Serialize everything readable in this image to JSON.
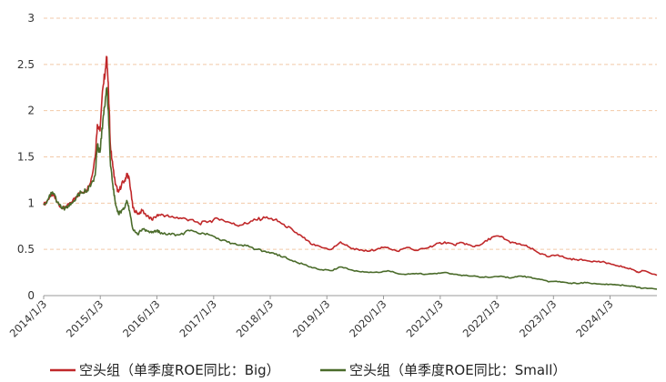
{
  "chart_data": {
    "type": "line",
    "title": "",
    "xlabel": "",
    "ylabel": "",
    "ylim": [
      0,
      3
    ],
    "yticks": [
      0,
      0.5,
      1,
      1.5,
      2,
      2.5,
      3
    ],
    "ytick_labels": [
      "0",
      "0.5",
      "1",
      "1.5",
      "2",
      "2.5",
      "3"
    ],
    "xlim": [
      "2014/1/3",
      "2024/10/31"
    ],
    "x_tick_labels": [
      "2014/1/3",
      "2015/1/3",
      "2016/1/3",
      "2017/1/3",
      "2018/1/3",
      "2019/1/3",
      "2020/1/3",
      "2021/1/3",
      "2022/1/3",
      "2023/1/3",
      "2024/1/3"
    ],
    "grid": {
      "y": true,
      "x": false,
      "style": "dashed",
      "color": "#f2c9a8"
    },
    "legend_position": "bottom",
    "series": [
      {
        "name": "空头组（单季度ROE同比：Big）",
        "color": "#c0282a",
        "points": [
          [
            "2014/1/3",
            0.98
          ],
          [
            "2014/2/1",
            1.04
          ],
          [
            "2014/3/1",
            1.1
          ],
          [
            "2014/4/1",
            1.01
          ],
          [
            "2014/5/1",
            0.94
          ],
          [
            "2014/6/1",
            0.96
          ],
          [
            "2014/7/1",
            1.01
          ],
          [
            "2014/8/1",
            1.07
          ],
          [
            "2014/9/1",
            1.12
          ],
          [
            "2014/10/1",
            1.14
          ],
          [
            "2014/11/1",
            1.22
          ],
          [
            "2014/12/1",
            1.5
          ],
          [
            "2014/12/15",
            1.85
          ],
          [
            "2015/1/1",
            1.78
          ],
          [
            "2015/1/20",
            2.25
          ],
          [
            "2015/2/5",
            2.45
          ],
          [
            "2015/2/15",
            2.58
          ],
          [
            "2015/2/25",
            2.2
          ],
          [
            "2015/3/10",
            1.6
          ],
          [
            "2015/3/25",
            1.4
          ],
          [
            "2015/4/10",
            1.2
          ],
          [
            "2015/5/1",
            1.12
          ],
          [
            "2015/5/20",
            1.2
          ],
          [
            "2015/6/10",
            1.25
          ],
          [
            "2015/6/25",
            1.32
          ],
          [
            "2015/7/10",
            1.25
          ],
          [
            "2015/8/1",
            0.95
          ],
          [
            "2015/9/1",
            0.88
          ],
          [
            "2015/10/1",
            0.92
          ],
          [
            "2015/11/1",
            0.86
          ],
          [
            "2015/12/1",
            0.82
          ],
          [
            "2016/1/1",
            0.86
          ],
          [
            "2016/2/1",
            0.88
          ],
          [
            "2016/4/1",
            0.85
          ],
          [
            "2016/6/1",
            0.84
          ],
          [
            "2016/8/1",
            0.82
          ],
          [
            "2016/10/1",
            0.78
          ],
          [
            "2016/12/1",
            0.8
          ],
          [
            "2017/2/1",
            0.83
          ],
          [
            "2017/4/1",
            0.8
          ],
          [
            "2017/6/1",
            0.76
          ],
          [
            "2017/8/1",
            0.78
          ],
          [
            "2017/10/1",
            0.82
          ],
          [
            "2017/12/1",
            0.84
          ],
          [
            "2018/2/1",
            0.82
          ],
          [
            "2018/4/1",
            0.77
          ],
          [
            "2018/6/1",
            0.7
          ],
          [
            "2018/8/1",
            0.63
          ],
          [
            "2018/10/1",
            0.55
          ],
          [
            "2018/12/1",
            0.52
          ],
          [
            "2019/2/1",
            0.5
          ],
          [
            "2019/4/1",
            0.58
          ],
          [
            "2019/6/1",
            0.52
          ],
          [
            "2019/8/1",
            0.49
          ],
          [
            "2019/10/1",
            0.48
          ],
          [
            "2019/12/1",
            0.51
          ],
          [
            "2020/2/1",
            0.52
          ],
          [
            "2020/4/1",
            0.48
          ],
          [
            "2020/6/1",
            0.52
          ],
          [
            "2020/8/1",
            0.49
          ],
          [
            "2020/10/1",
            0.51
          ],
          [
            "2020/12/1",
            0.55
          ],
          [
            "2021/2/1",
            0.58
          ],
          [
            "2021/4/1",
            0.55
          ],
          [
            "2021/6/1",
            0.57
          ],
          [
            "2021/8/1",
            0.53
          ],
          [
            "2021/10/1",
            0.56
          ],
          [
            "2021/12/1",
            0.63
          ],
          [
            "2022/2/1",
            0.64
          ],
          [
            "2022/4/1",
            0.57
          ],
          [
            "2022/6/1",
            0.56
          ],
          [
            "2022/8/1",
            0.52
          ],
          [
            "2022/10/1",
            0.46
          ],
          [
            "2022/12/1",
            0.42
          ],
          [
            "2023/2/1",
            0.44
          ],
          [
            "2023/4/1",
            0.4
          ],
          [
            "2023/6/1",
            0.39
          ],
          [
            "2023/8/1",
            0.38
          ],
          [
            "2023/10/1",
            0.37
          ],
          [
            "2023/12/1",
            0.36
          ],
          [
            "2024/2/1",
            0.33
          ],
          [
            "2024/4/1",
            0.31
          ],
          [
            "2024/6/1",
            0.28
          ],
          [
            "2024/7/1",
            0.25
          ],
          [
            "2024/8/1",
            0.27
          ],
          [
            "2024/10/31",
            0.22
          ]
        ]
      },
      {
        "name": "空头组（单季度ROE同比：Small）",
        "color": "#4a6b2a",
        "points": [
          [
            "2014/1/3",
            0.98
          ],
          [
            "2014/2/1",
            1.04
          ],
          [
            "2014/3/1",
            1.12
          ],
          [
            "2014/4/1",
            1.01
          ],
          [
            "2014/5/1",
            0.94
          ],
          [
            "2014/6/1",
            0.95
          ],
          [
            "2014/7/1",
            1.0
          ],
          [
            "2014/8/1",
            1.06
          ],
          [
            "2014/9/1",
            1.12
          ],
          [
            "2014/10/1",
            1.13
          ],
          [
            "2014/11/1",
            1.18
          ],
          [
            "2014/12/1",
            1.3
          ],
          [
            "2014/12/15",
            1.62
          ],
          [
            "2015/1/1",
            1.55
          ],
          [
            "2015/1/20",
            1.9
          ],
          [
            "2015/2/5",
            2.12
          ],
          [
            "2015/2/15",
            2.25
          ],
          [
            "2015/2/25",
            1.95
          ],
          [
            "2015/3/10",
            1.4
          ],
          [
            "2015/3/25",
            1.2
          ],
          [
            "2015/4/10",
            1.0
          ],
          [
            "2015/5/1",
            0.88
          ],
          [
            "2015/5/20",
            0.92
          ],
          [
            "2015/6/10",
            0.95
          ],
          [
            "2015/6/25",
            1.02
          ],
          [
            "2015/7/10",
            0.92
          ],
          [
            "2015/8/1",
            0.72
          ],
          [
            "2015/9/1",
            0.66
          ],
          [
            "2015/10/1",
            0.72
          ],
          [
            "2015/11/1",
            0.7
          ],
          [
            "2015/12/1",
            0.68
          ],
          [
            "2016/1/1",
            0.7
          ],
          [
            "2016/2/1",
            0.68
          ],
          [
            "2016/4/1",
            0.66
          ],
          [
            "2016/6/1",
            0.66
          ],
          [
            "2016/8/1",
            0.7
          ],
          [
            "2016/10/1",
            0.67
          ],
          [
            "2016/12/1",
            0.66
          ],
          [
            "2017/2/1",
            0.62
          ],
          [
            "2017/4/1",
            0.58
          ],
          [
            "2017/6/1",
            0.55
          ],
          [
            "2017/8/1",
            0.54
          ],
          [
            "2017/10/1",
            0.5
          ],
          [
            "2017/12/1",
            0.48
          ],
          [
            "2018/2/1",
            0.45
          ],
          [
            "2018/4/1",
            0.42
          ],
          [
            "2018/6/1",
            0.37
          ],
          [
            "2018/8/1",
            0.34
          ],
          [
            "2018/10/1",
            0.3
          ],
          [
            "2018/12/1",
            0.28
          ],
          [
            "2019/2/1",
            0.27
          ],
          [
            "2019/4/1",
            0.31
          ],
          [
            "2019/6/1",
            0.28
          ],
          [
            "2019/8/1",
            0.26
          ],
          [
            "2019/10/1",
            0.25
          ],
          [
            "2019/12/1",
            0.25
          ],
          [
            "2020/2/1",
            0.27
          ],
          [
            "2020/4/1",
            0.24
          ],
          [
            "2020/6/1",
            0.23
          ],
          [
            "2020/8/1",
            0.24
          ],
          [
            "2020/10/1",
            0.23
          ],
          [
            "2020/12/1",
            0.24
          ],
          [
            "2021/2/1",
            0.25
          ],
          [
            "2021/4/1",
            0.23
          ],
          [
            "2021/6/1",
            0.22
          ],
          [
            "2021/8/1",
            0.21
          ],
          [
            "2021/10/1",
            0.2
          ],
          [
            "2021/12/1",
            0.2
          ],
          [
            "2022/2/1",
            0.21
          ],
          [
            "2022/4/1",
            0.19
          ],
          [
            "2022/6/1",
            0.21
          ],
          [
            "2022/8/1",
            0.2
          ],
          [
            "2022/10/1",
            0.18
          ],
          [
            "2022/12/1",
            0.15
          ],
          [
            "2023/2/1",
            0.15
          ],
          [
            "2023/4/1",
            0.14
          ],
          [
            "2023/6/1",
            0.13
          ],
          [
            "2023/8/1",
            0.14
          ],
          [
            "2023/10/1",
            0.13
          ],
          [
            "2023/12/1",
            0.12
          ],
          [
            "2024/2/1",
            0.12
          ],
          [
            "2024/4/1",
            0.11
          ],
          [
            "2024/6/1",
            0.1
          ],
          [
            "2024/8/1",
            0.08
          ],
          [
            "2024/10/31",
            0.07
          ]
        ]
      }
    ]
  }
}
